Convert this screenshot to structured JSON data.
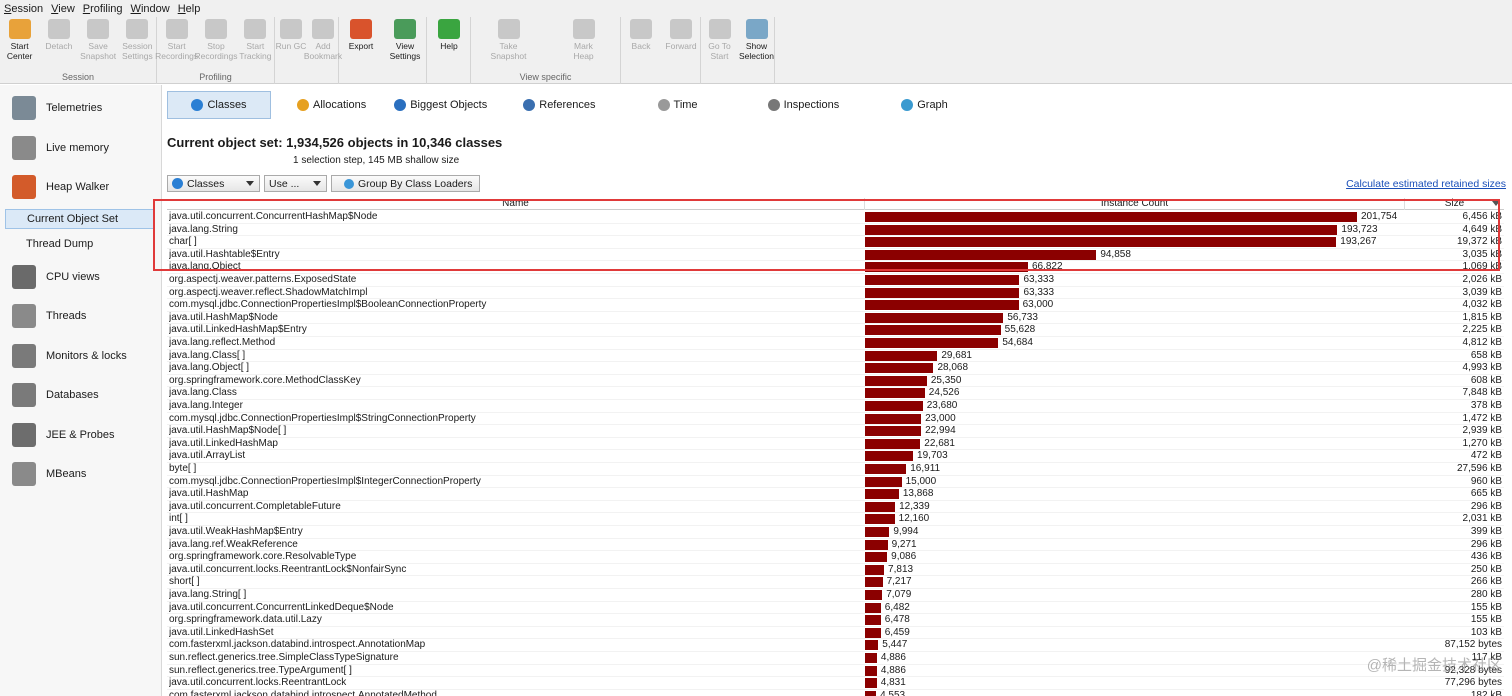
{
  "menu": [
    "Session",
    "View",
    "Profiling",
    "Window",
    "Help"
  ],
  "toolbar": {
    "groups": [
      {
        "label": "Session",
        "buttons": [
          {
            "label": "Start\nCenter",
            "enabled": true,
            "icon": "folder-icon"
          },
          {
            "label": "Detach",
            "enabled": false,
            "icon": "detach-icon"
          },
          {
            "label": "Save\nSnapshot",
            "enabled": false,
            "icon": "save-icon"
          },
          {
            "label": "Session\nSettings",
            "enabled": false,
            "icon": "settings-icon"
          }
        ]
      },
      {
        "label": "Profiling",
        "buttons": [
          {
            "label": "Start\nRecordings",
            "enabled": false,
            "icon": "record-icon"
          },
          {
            "label": "Stop\nRecordings",
            "enabled": false,
            "icon": "stop-icon"
          },
          {
            "label": "Start\nTracking",
            "enabled": false,
            "icon": "tracking-icon"
          }
        ]
      },
      {
        "label": "",
        "buttons": [
          {
            "label": "Run GC",
            "enabled": false,
            "icon": "gc-icon"
          },
          {
            "label": "Add\nBookmark",
            "enabled": false,
            "icon": "bookmark-icon"
          }
        ]
      },
      {
        "label": "",
        "buttons": [
          {
            "label": "Export",
            "enabled": true,
            "icon": "export-icon"
          },
          {
            "label": "View\nSettings",
            "enabled": true,
            "icon": "view-settings-icon"
          }
        ]
      },
      {
        "label": "",
        "buttons": [
          {
            "label": "Help",
            "enabled": true,
            "icon": "help-icon"
          }
        ]
      },
      {
        "label": "View specific",
        "buttons": [
          {
            "label": "Take\nSnapshot",
            "enabled": false,
            "icon": "snapshot-icon"
          },
          {
            "label": "Mark\nHeap",
            "enabled": false,
            "icon": "pin-icon"
          }
        ]
      },
      {
        "label": "",
        "buttons": [
          {
            "label": "Back",
            "enabled": false,
            "icon": "back-icon"
          },
          {
            "label": "Forward",
            "enabled": false,
            "icon": "forward-icon"
          }
        ]
      },
      {
        "label": "",
        "buttons": [
          {
            "label": "Go To\nStart",
            "enabled": false,
            "icon": "home-icon"
          },
          {
            "label": "Show\nSelection",
            "enabled": true,
            "icon": "show-selection-icon"
          }
        ]
      }
    ]
  },
  "sidebar": {
    "items": [
      {
        "label": "Telemetries",
        "icon": "telemetries-icon"
      },
      {
        "label": "Live memory",
        "icon": "live-memory-icon"
      },
      {
        "label": "Heap Walker",
        "icon": "heap-walker-icon"
      },
      {
        "label": "CPU views",
        "icon": "cpu-icon"
      },
      {
        "label": "Threads",
        "icon": "threads-icon"
      },
      {
        "label": "Monitors & locks",
        "icon": "lock-icon"
      },
      {
        "label": "Databases",
        "icon": "database-icon"
      },
      {
        "label": "JEE & Probes",
        "icon": "probes-icon"
      },
      {
        "label": "MBeans",
        "icon": "mbeans-icon"
      }
    ],
    "subitems": [
      {
        "label": "Current Object Set",
        "selected": true
      },
      {
        "label": "Thread Dump",
        "selected": false
      }
    ]
  },
  "tabs": [
    "Classes",
    "Allocations",
    "Biggest Objects",
    "References",
    "Time",
    "Inspections",
    "Graph"
  ],
  "object_set": {
    "title": "Current object set:  1,934,526 objects in 10,346 classes",
    "subtitle": "1 selection step, 145 MB shallow size"
  },
  "controls": {
    "classes_dd": "Classes",
    "use_dd": "Use ...",
    "group_btn": "Group By Class Loaders",
    "calc_link": "Calculate estimated retained sizes"
  },
  "table": {
    "headers": [
      "Name",
      "Instance Count",
      "Size"
    ],
    "max_count": 201754,
    "rows": [
      {
        "name": "java.util.concurrent.ConcurrentHashMap$Node",
        "count": 201754,
        "count_text": "201,754",
        "size": "6,456 kB"
      },
      {
        "name": "java.lang.String",
        "count": 193723,
        "count_text": "193,723",
        "size": "4,649 kB"
      },
      {
        "name": "char[ ]",
        "count": 193267,
        "count_text": "193,267",
        "size": "19,372 kB"
      },
      {
        "name": "java.util.Hashtable$Entry",
        "count": 94858,
        "count_text": "94,858",
        "size": "3,035 kB"
      },
      {
        "name": "java.lang.Object",
        "count": 66822,
        "count_text": "66,822",
        "size": "1,069 kB"
      },
      {
        "name": "org.aspectj.weaver.patterns.ExposedState",
        "count": 63333,
        "count_text": "63,333",
        "size": "2,026 kB"
      },
      {
        "name": "org.aspectj.weaver.reflect.ShadowMatchImpl",
        "count": 63333,
        "count_text": "63,333",
        "size": "3,039 kB"
      },
      {
        "name": "com.mysql.jdbc.ConnectionPropertiesImpl$BooleanConnectionProperty",
        "count": 63000,
        "count_text": "63,000",
        "size": "4,032 kB"
      },
      {
        "name": "java.util.HashMap$Node",
        "count": 56733,
        "count_text": "56,733",
        "size": "1,815 kB"
      },
      {
        "name": "java.util.LinkedHashMap$Entry",
        "count": 55628,
        "count_text": "55,628",
        "size": "2,225 kB"
      },
      {
        "name": "java.lang.reflect.Method",
        "count": 54684,
        "count_text": "54,684",
        "size": "4,812 kB"
      },
      {
        "name": "java.lang.Class[ ]",
        "count": 29681,
        "count_text": "29,681",
        "size": "658 kB"
      },
      {
        "name": "java.lang.Object[ ]",
        "count": 28068,
        "count_text": "28,068",
        "size": "4,993 kB"
      },
      {
        "name": "org.springframework.core.MethodClassKey",
        "count": 25350,
        "count_text": "25,350",
        "size": "608 kB"
      },
      {
        "name": "java.lang.Class",
        "count": 24526,
        "count_text": "24,526",
        "size": "7,848 kB"
      },
      {
        "name": "java.lang.Integer",
        "count": 23680,
        "count_text": "23,680",
        "size": "378 kB"
      },
      {
        "name": "com.mysql.jdbc.ConnectionPropertiesImpl$StringConnectionProperty",
        "count": 23000,
        "count_text": "23,000",
        "size": "1,472 kB"
      },
      {
        "name": "java.util.HashMap$Node[ ]",
        "count": 22994,
        "count_text": "22,994",
        "size": "2,939 kB"
      },
      {
        "name": "java.util.LinkedHashMap",
        "count": 22681,
        "count_text": "22,681",
        "size": "1,270 kB"
      },
      {
        "name": "java.util.ArrayList",
        "count": 19703,
        "count_text": "19,703",
        "size": "472 kB"
      },
      {
        "name": "byte[ ]",
        "count": 16911,
        "count_text": "16,911",
        "size": "27,596 kB"
      },
      {
        "name": "com.mysql.jdbc.ConnectionPropertiesImpl$IntegerConnectionProperty",
        "count": 15000,
        "count_text": "15,000",
        "size": "960 kB"
      },
      {
        "name": "java.util.HashMap",
        "count": 13868,
        "count_text": "13,868",
        "size": "665 kB"
      },
      {
        "name": "java.util.concurrent.CompletableFuture",
        "count": 12339,
        "count_text": "12,339",
        "size": "296 kB"
      },
      {
        "name": "int[ ]",
        "count": 12160,
        "count_text": "12,160",
        "size": "2,031 kB"
      },
      {
        "name": "java.util.WeakHashMap$Entry",
        "count": 9994,
        "count_text": "9,994",
        "size": "399 kB"
      },
      {
        "name": "java.lang.ref.WeakReference",
        "count": 9271,
        "count_text": "9,271",
        "size": "296 kB"
      },
      {
        "name": "org.springframework.core.ResolvableType",
        "count": 9086,
        "count_text": "9,086",
        "size": "436 kB"
      },
      {
        "name": "java.util.concurrent.locks.ReentrantLock$NonfairSync",
        "count": 7813,
        "count_text": "7,813",
        "size": "250 kB"
      },
      {
        "name": "short[ ]",
        "count": 7217,
        "count_text": "7,217",
        "size": "266 kB"
      },
      {
        "name": "java.lang.String[ ]",
        "count": 7079,
        "count_text": "7,079",
        "size": "280 kB"
      },
      {
        "name": "java.util.concurrent.ConcurrentLinkedDeque$Node",
        "count": 6482,
        "count_text": "6,482",
        "size": "155 kB"
      },
      {
        "name": "org.springframework.data.util.Lazy",
        "count": 6478,
        "count_text": "6,478",
        "size": "155 kB"
      },
      {
        "name": "java.util.LinkedHashSet",
        "count": 6459,
        "count_text": "6,459",
        "size": "103 kB"
      },
      {
        "name": "com.fasterxml.jackson.databind.introspect.AnnotationMap",
        "count": 5447,
        "count_text": "5,447",
        "size": "87,152 bytes"
      },
      {
        "name": "sun.reflect.generics.tree.SimpleClassTypeSignature",
        "count": 4886,
        "count_text": "4,886",
        "size": "117 kB"
      },
      {
        "name": "sun.reflect.generics.tree.TypeArgument[ ]",
        "count": 4886,
        "count_text": "4,886",
        "size": "92,328 bytes"
      },
      {
        "name": "java.util.concurrent.locks.ReentrantLock",
        "count": 4831,
        "count_text": "4,831",
        "size": "77,296 bytes"
      },
      {
        "name": "com.fasterxml.jackson.databind.introspect.AnnotatedMethod",
        "count": 4553,
        "count_text": "4,553",
        "size": "182 kB"
      }
    ]
  },
  "watermark": "@稀土掘金技术社区",
  "colors": {
    "bar": "#8b0000",
    "highlight": "#e03a3a",
    "link": "#1a4fb8",
    "selection": "#dbe9f7"
  }
}
